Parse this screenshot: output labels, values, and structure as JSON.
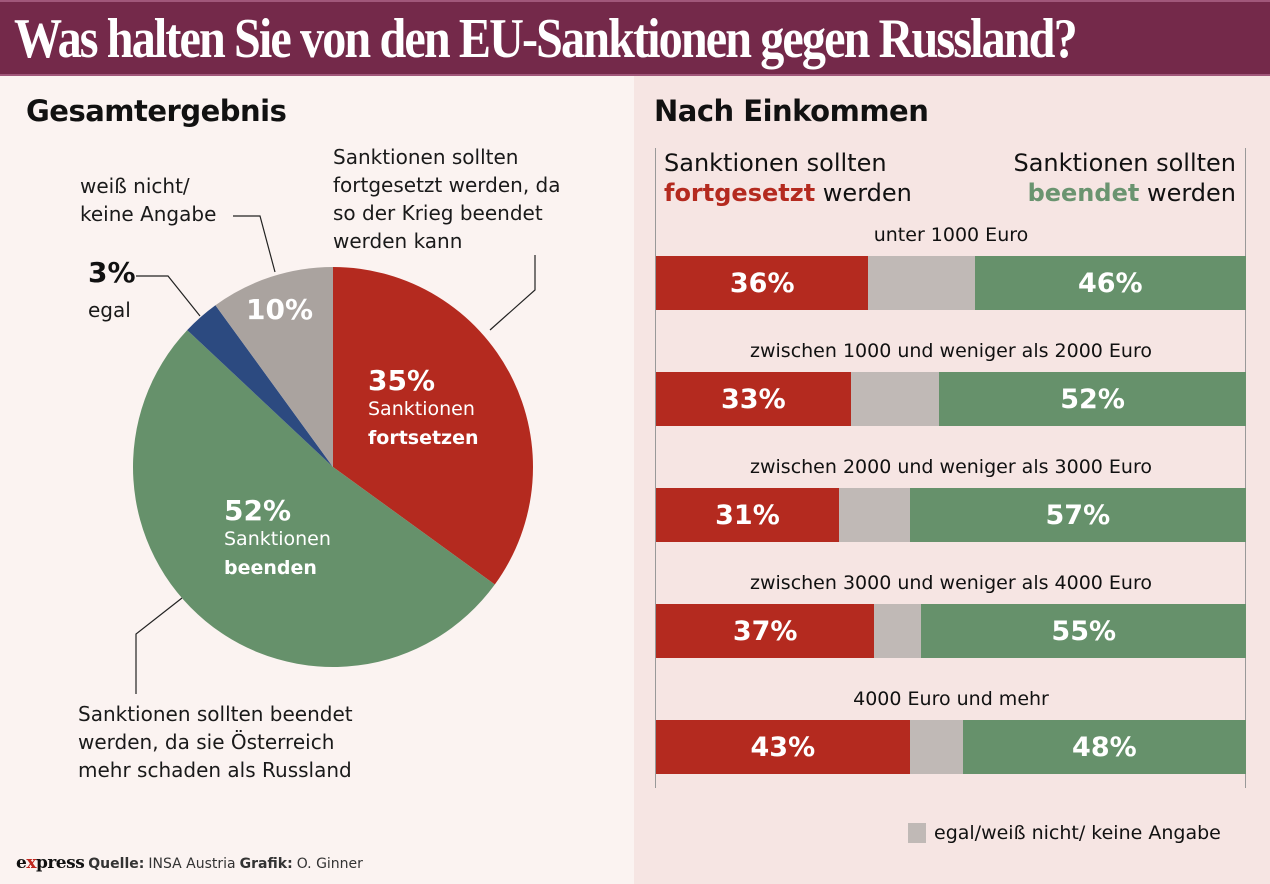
{
  "header": {
    "title": "Was halten Sie von den EU-Sanktionen gegen Russland?"
  },
  "colors": {
    "red": "#b42a1f",
    "green": "#66916b",
    "grey": "#aaa39f",
    "blue": "#2c4a80",
    "header_bg": "#74294a",
    "bar_grey": "#c0b9b6"
  },
  "left": {
    "title": "Gesamtergebnis",
    "annotations": {
      "fortsetzen": [
        "Sanktionen sollten",
        "fortgesetzt werden, da",
        "so der Krieg beendet",
        "werden kann"
      ],
      "weiss_nicht": [
        "weiß nicht/",
        "keine Angabe"
      ],
      "egal_pct": "3%",
      "egal_label": "egal",
      "beenden": [
        "Sanktionen sollten beendet",
        "werden, da sie Österreich",
        "mehr schaden als Russland"
      ]
    },
    "slice_labels": {
      "fortsetzen_pct": "35%",
      "fortsetzen_l1": "Sanktionen",
      "fortsetzen_l2": "fortsetzen",
      "beenden_pct": "52%",
      "beenden_l1": "Sanktionen",
      "beenden_l2": "beenden",
      "weiss_pct": "10%"
    }
  },
  "right": {
    "title": "Nach Einkommen",
    "col_left": {
      "line1": "Sanktionen sollten",
      "highlight": "fortgesetzt",
      "rest": " werden"
    },
    "col_right": {
      "line1": "Sanktionen sollten",
      "highlight": "beendet",
      "rest": " werden"
    },
    "legend": "egal/weiß nicht/ keine Angabe"
  },
  "footer": {
    "logo_pre": "e",
    "logo_x": "x",
    "logo_post": "press",
    "source_label": "Quelle:",
    "source": "INSA Austria",
    "graphic_label": "Grafik:",
    "graphic": "O. Ginner"
  },
  "chart_data": [
    {
      "type": "pie",
      "title": "Gesamtergebnis",
      "categories": [
        "Sanktionen fortsetzen",
        "Sanktionen beenden",
        "egal",
        "weiß nicht/keine Angabe"
      ],
      "values": [
        35,
        52,
        3,
        10
      ],
      "colors": [
        "#b42a1f",
        "#66916b",
        "#2c4a80",
        "#aaa39f"
      ]
    },
    {
      "type": "bar",
      "orientation": "horizontal-stacked",
      "title": "Nach Einkommen",
      "categories": [
        "unter 1000 Euro",
        "zwischen 1000 und weniger als 2000 Euro",
        "zwischen 2000 und weniger als 3000 Euro",
        "zwischen 3000 und weniger als 4000 Euro",
        "4000 Euro und mehr"
      ],
      "series": [
        {
          "name": "Sanktionen sollten fortgesetzt werden",
          "values": [
            36,
            33,
            31,
            37,
            43
          ],
          "labels": [
            "36%",
            "33%",
            "31%",
            "37%",
            "43%"
          ]
        },
        {
          "name": "egal/weiß nicht/ keine Angabe",
          "values": [
            18,
            15,
            12,
            8,
            9
          ]
        },
        {
          "name": "Sanktionen sollten beendet werden",
          "values": [
            46,
            52,
            57,
            55,
            48
          ],
          "labels": [
            "46%",
            "52%",
            "57%",
            "55%",
            "48%"
          ]
        }
      ],
      "xlim": [
        0,
        100
      ]
    }
  ]
}
